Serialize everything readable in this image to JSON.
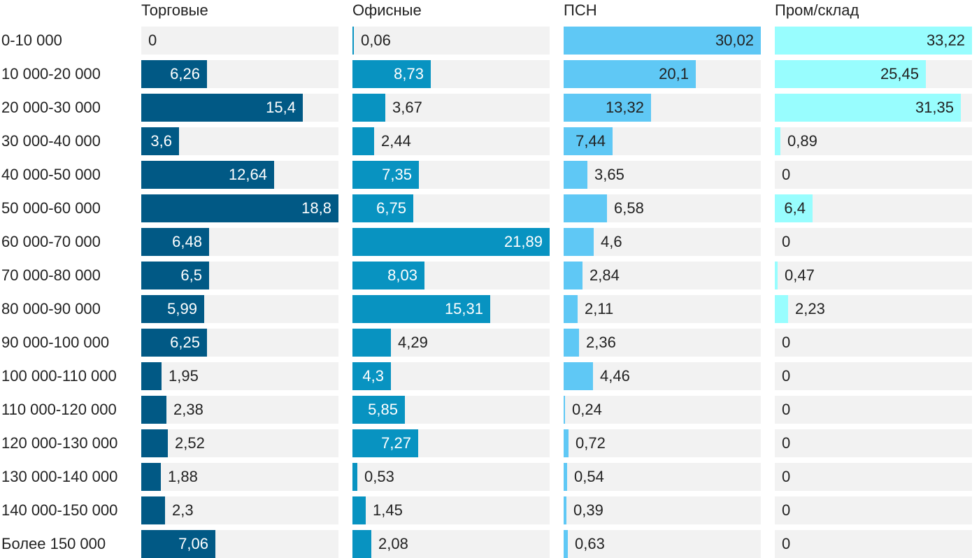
{
  "chart_data": {
    "type": "bar",
    "orientation": "horizontal",
    "layout": "small-multiples",
    "categories": [
      "0-10 000",
      "10 000-20 000",
      "20 000-30 000",
      "30 000-40 000",
      "40 000-50 000",
      "50 000-60 000",
      "60 000-70 000",
      "70 000-80 000",
      "80 000-90 000",
      "90 000-100 000",
      "100 000-110 000",
      "110 000-120 000",
      "120 000-130 000",
      "130 000-140 000",
      "140 000-150 000",
      "Более 150 000"
    ],
    "series": [
      {
        "name": "Торговые",
        "color": "#015985",
        "label_color": "#ffffff",
        "max": 18.8,
        "values": [
          0,
          6.26,
          15.4,
          3.6,
          12.64,
          18.8,
          6.48,
          6.5,
          5.99,
          6.25,
          1.95,
          2.38,
          2.52,
          1.88,
          2.3,
          7.06
        ],
        "labels": [
          "0",
          "6,26",
          "15,4",
          "3,6",
          "12,64",
          "18,8",
          "6,48",
          "6,5",
          "5,99",
          "6,25",
          "1,95",
          "2,38",
          "2,52",
          "1,88",
          "2,3",
          "7,06"
        ]
      },
      {
        "name": "Офисные",
        "color": "#0893c1",
        "label_color": "#ffffff",
        "max": 21.89,
        "values": [
          0.06,
          8.73,
          3.67,
          2.44,
          7.35,
          6.75,
          21.89,
          8.03,
          15.31,
          4.29,
          4.3,
          5.85,
          7.27,
          0.53,
          1.45,
          2.08
        ],
        "labels": [
          "0,06",
          "8,73",
          "3,67",
          "2,44",
          "7,35",
          "6,75",
          "21,89",
          "8,03",
          "15,31",
          "4,29",
          "4,3",
          "5,85",
          "7,27",
          "0,53",
          "1,45",
          "2,08"
        ]
      },
      {
        "name": "ПСН",
        "color": "#5fc8f5",
        "label_color": "#222222",
        "max": 30.02,
        "values": [
          30.02,
          20.1,
          13.32,
          7.44,
          3.65,
          6.58,
          4.6,
          2.84,
          2.11,
          2.36,
          4.46,
          0.24,
          0.72,
          0.54,
          0.39,
          0.63
        ],
        "labels": [
          "30,02",
          "20,1",
          "13,32",
          "7,44",
          "3,65",
          "6,58",
          "4,6",
          "2,84",
          "2,11",
          "2,36",
          "4,46",
          "0,24",
          "0,72",
          "0,54",
          "0,39",
          "0,63"
        ]
      },
      {
        "name": "Пром/склад",
        "color": "#98fdfe",
        "label_color": "#222222",
        "max": 33.22,
        "values": [
          33.22,
          25.45,
          31.35,
          0.89,
          0,
          6.4,
          0,
          0.47,
          2.23,
          0,
          0,
          0,
          0,
          0,
          0,
          0
        ],
        "labels": [
          "33,22",
          "25,45",
          "31,35",
          "0,89",
          "0",
          "6,4",
          "0",
          "0,47",
          "2,23",
          "0",
          "0",
          "0",
          "0",
          "0",
          "0",
          "0"
        ]
      }
    ],
    "grid": false,
    "legend": "none"
  }
}
